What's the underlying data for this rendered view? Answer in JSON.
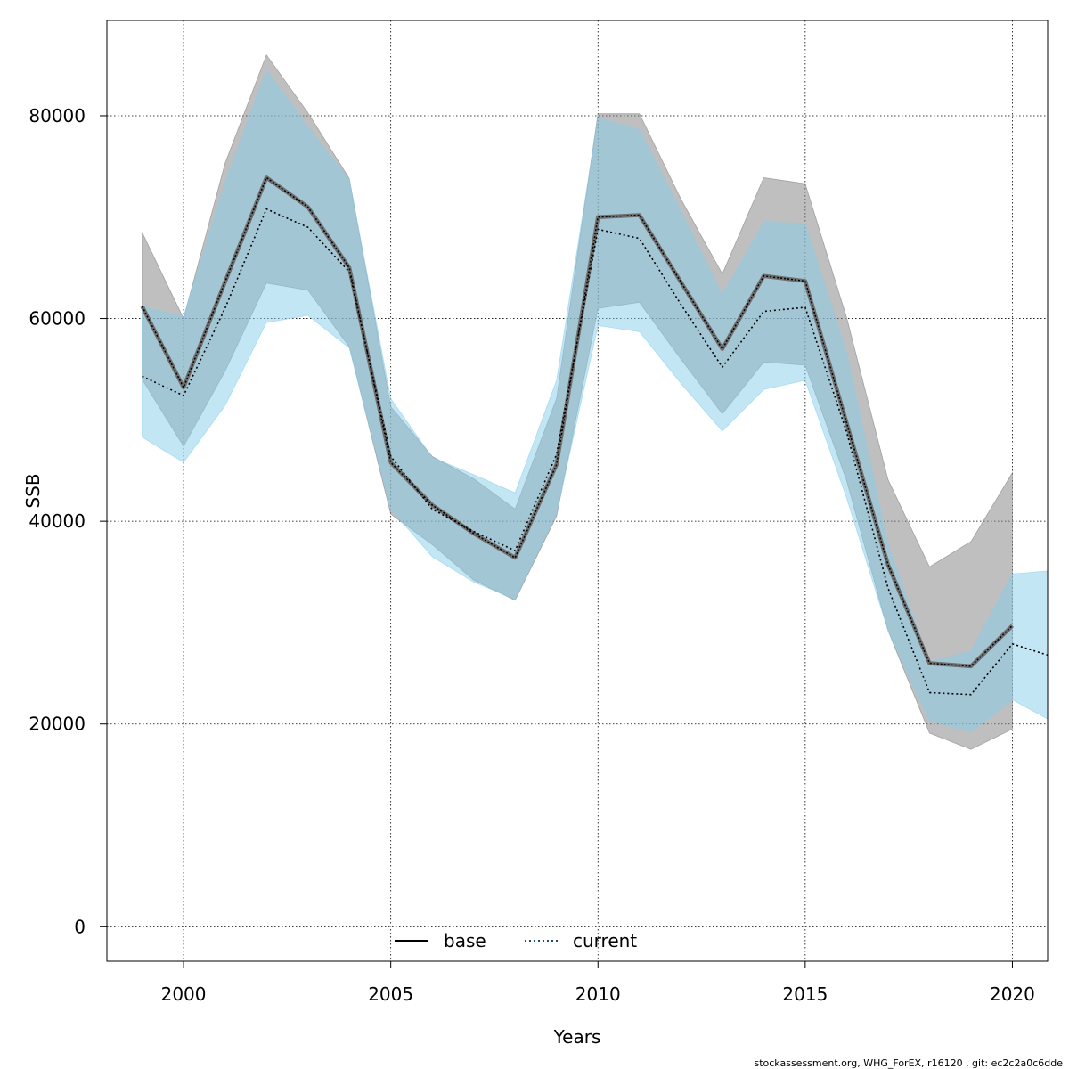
{
  "chart_data": {
    "type": "line",
    "title": "",
    "xlabel": "Years",
    "ylabel": "SSB",
    "xlim": [
      1998.15,
      2020.85
    ],
    "ylim": [
      -3400,
      89400
    ],
    "x_ticks": [
      2000,
      2005,
      2010,
      2015,
      2020
    ],
    "y_ticks": [
      0,
      20000,
      40000,
      60000,
      80000
    ],
    "grid": true,
    "legend_position": "bottom-center",
    "series": [
      {
        "name": "base",
        "line_style": "solid",
        "line_color": "#000000",
        "band_color": "#7f7f7f",
        "x": [
          1999,
          2000,
          2001,
          2002,
          2003,
          2004,
          2005,
          2006,
          2007,
          2008,
          2009,
          2010,
          2011,
          2012,
          2013,
          2014,
          2015,
          2016,
          2017,
          2018,
          2019,
          2020
        ],
        "values": [
          61200,
          53200,
          63600,
          73900,
          71000,
          65000,
          45800,
          41600,
          38800,
          36400,
          45600,
          70000,
          70200,
          63600,
          57000,
          64200,
          63700,
          49700,
          35700,
          26000,
          25700,
          29700
        ],
        "lower": [
          54000,
          47400,
          54800,
          63500,
          62800,
          57200,
          40700,
          37700,
          34200,
          32200,
          40500,
          61000,
          61600,
          56000,
          50600,
          55700,
          55400,
          44000,
          29200,
          19100,
          17500,
          19500
        ],
        "upper": [
          68500,
          60000,
          75300,
          86000,
          80300,
          73800,
          51300,
          46400,
          44200,
          41200,
          52100,
          80200,
          80200,
          71800,
          64400,
          73900,
          73300,
          60100,
          44100,
          35500,
          38000,
          44800
        ]
      },
      {
        "name": "current",
        "line_style": "dotted",
        "line_color": "#000000",
        "band_color": "#87ceeb",
        "x": [
          1999,
          2000,
          2001,
          2002,
          2003,
          2004,
          2005,
          2006,
          2007,
          2008,
          2009,
          2010,
          2011,
          2012,
          2013,
          2014,
          2015,
          2016,
          2017,
          2018,
          2019,
          2020,
          2021
        ],
        "values": [
          54300,
          52400,
          61000,
          70800,
          69000,
          64600,
          46400,
          41200,
          39000,
          37100,
          46600,
          68800,
          67900,
          61400,
          55200,
          60700,
          61100,
          48800,
          33400,
          23100,
          22900,
          27900,
          26800
        ],
        "lower": [
          48300,
          45800,
          51400,
          59600,
          60300,
          57100,
          41200,
          36500,
          34000,
          32300,
          40800,
          59300,
          58700,
          53600,
          48900,
          53000,
          53900,
          42300,
          29200,
          20300,
          19200,
          22400,
          20500
        ],
        "upper": [
          61200,
          60200,
          73400,
          84500,
          78900,
          73700,
          52100,
          46300,
          44600,
          42800,
          53900,
          79800,
          78600,
          70600,
          62300,
          69500,
          69400,
          56600,
          37700,
          26100,
          27200,
          34800,
          35100
        ]
      }
    ]
  },
  "footer": {
    "text": "stockassessment.org, WHG_ForEX, r16120 , git: ec2c2a0c6dde"
  }
}
